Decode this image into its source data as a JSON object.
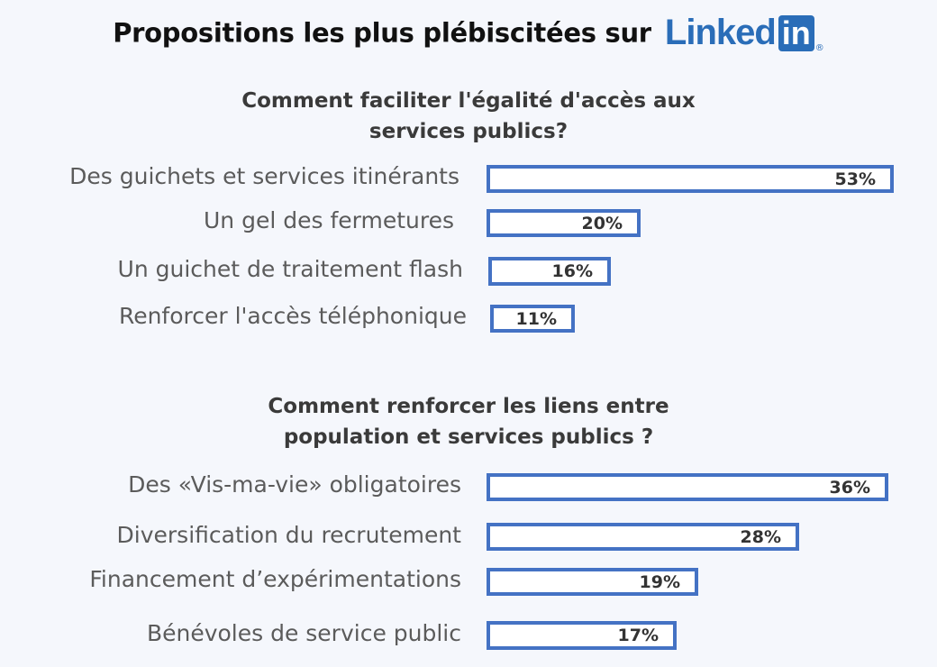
{
  "header": {
    "title": "Propositions les plus plébiscitées sur",
    "logo": {
      "word": "Linked",
      "box": "in",
      "mark": "®",
      "color": "#2a6db8"
    }
  },
  "chart_data": [
    {
      "type": "bar",
      "orientation": "horizontal",
      "title": "Comment faciliter l'égalité d'accès aux services publics?",
      "categories": [
        "Des guichets et services itinérants",
        "Un gel des fermetures",
        "Un guichet de traitement flash",
        "Renforcer l'accès téléphonique"
      ],
      "values": [
        53,
        20,
        16,
        11
      ],
      "value_labels": [
        "53%",
        "20%",
        "16%",
        "11%"
      ],
      "unit": "%",
      "bar_fill": "#ffffff",
      "bar_border": "#4472c4"
    },
    {
      "type": "bar",
      "orientation": "horizontal",
      "title": "Comment renforcer les liens entre population et services publics ?",
      "categories": [
        "Des «Vis-ma-vie» obligatoires",
        "Diversification du recrutement",
        "Financement d’expérimentations",
        "Bénévoles de service public"
      ],
      "values": [
        36,
        28,
        19,
        17
      ],
      "value_labels": [
        "36%",
        "28%",
        "19%",
        "17%"
      ],
      "unit": "%",
      "bar_fill": "#ffffff",
      "bar_border": "#4472c4"
    }
  ]
}
